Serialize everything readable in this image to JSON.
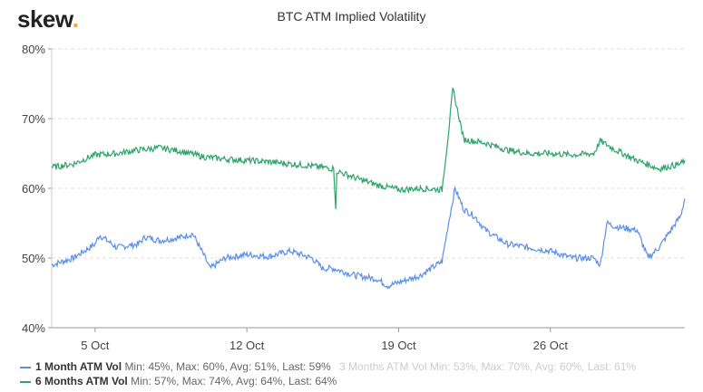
{
  "logo": {
    "text": "skew",
    "dot": "."
  },
  "chart_data": {
    "type": "line",
    "title": "BTC ATM Implied Volatility",
    "xlabel": "",
    "ylabel": "",
    "x_unit": "day of October 2020 (32 = 1 Nov)",
    "xlim": [
      3,
      32.2
    ],
    "ylim": [
      40,
      80
    ],
    "yticks": [
      {
        "v": 40,
        "label": "40%"
      },
      {
        "v": 50,
        "label": "50%"
      },
      {
        "v": 60,
        "label": "60%"
      },
      {
        "v": 70,
        "label": "70%"
      },
      {
        "v": 80,
        "label": "80%"
      }
    ],
    "xticks": [
      {
        "v": 5,
        "label": "5 Oct"
      },
      {
        "v": 12,
        "label": "12 Oct"
      },
      {
        "v": 19,
        "label": "19 Oct"
      },
      {
        "v": 26,
        "label": "26 Oct"
      }
    ],
    "grid": true,
    "legend_position": "bottom-left",
    "series": [
      {
        "name": "1 Month ATM Vol",
        "stats": "Min: 45%, Max: 60%, Avg: 51%, Last: 59%",
        "color": "#5b8fe8",
        "visible": true,
        "x": [
          3,
          4,
          5,
          5.2,
          6,
          7,
          7.3,
          8,
          9,
          9.5,
          10,
          10.3,
          11,
          12,
          13,
          14,
          15,
          15.5,
          16,
          17,
          18,
          18.5,
          19,
          20,
          21,
          21.3,
          21.6,
          22,
          22.5,
          23,
          24,
          25,
          26,
          27,
          28,
          28.3,
          28.6,
          29,
          30,
          30.5,
          31,
          32,
          32.2
        ],
        "y": [
          49,
          50,
          52,
          53.3,
          51.5,
          52,
          53,
          52.5,
          53,
          53.5,
          50.5,
          48.5,
          50,
          50.5,
          50.2,
          51,
          50,
          48.5,
          48.5,
          47.5,
          47,
          46,
          46.5,
          47.5,
          49.5,
          55,
          60,
          57,
          56,
          54,
          52,
          51.5,
          51,
          50,
          50,
          49,
          55,
          54.5,
          54,
          50,
          51.5,
          56,
          58.5
        ]
      },
      {
        "name": "3 Months ATM Vol",
        "stats": "Min: 53%, Max: 70%, Avg: 60%, Last: 61%",
        "color": "#cccccc",
        "visible": false,
        "x": [],
        "y": []
      },
      {
        "name": "6 Months ATM Vol",
        "stats": "Min: 57%, Max: 74%, Avg: 64%, Last: 64%",
        "color": "#2ea36a",
        "visible": true,
        "x": [
          3,
          4,
          5,
          6,
          7,
          8,
          9,
          10,
          11,
          12,
          13,
          14,
          15,
          16,
          16.1,
          16.15,
          17,
          18,
          19,
          20,
          21,
          21.3,
          21.5,
          21.8,
          22,
          23,
          24,
          25,
          26,
          27,
          28,
          28.3,
          29,
          30,
          31,
          32,
          32.2
        ],
        "y": [
          63,
          63.5,
          64.8,
          65,
          65.5,
          65.8,
          65.3,
          64.5,
          64.2,
          64,
          63.8,
          63.5,
          63.2,
          62.8,
          57,
          62.5,
          61.5,
          60.5,
          59.8,
          60,
          59.8,
          68,
          74.2,
          70,
          67,
          66.5,
          65.5,
          65,
          65,
          64.8,
          65,
          66.8,
          65.5,
          64,
          62.8,
          63.5,
          64
        ]
      }
    ]
  }
}
